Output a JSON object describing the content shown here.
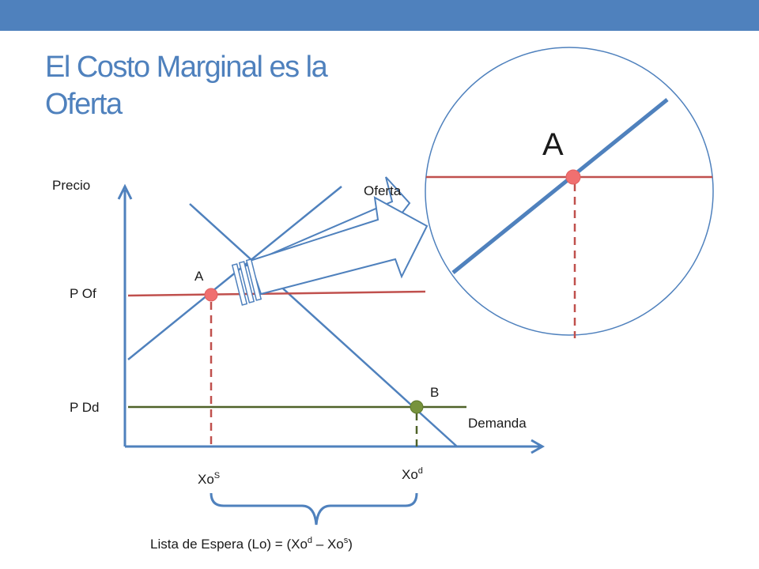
{
  "slide": {
    "title_line1": "El Costo Marginal es la",
    "title_line2": "Oferta"
  },
  "diagram": {
    "y_axis_label": "Precio",
    "supply_label": "Oferta",
    "demand_label": "Demanda",
    "price_supply_label": "P Of",
    "price_demand_label": "P Dd",
    "point_a_label": "A",
    "point_b_label": "B",
    "zoom_point_label": "A",
    "xos_base": "Xo",
    "xos_sup": "S",
    "xod_base": "Xo",
    "xod_sup": "d",
    "waiting_list": {
      "prefix": "Lista de Espera (Lo) = (Xo",
      "sup1": "d",
      "middle": " – Xo",
      "sup2": "s",
      "suffix": ")"
    }
  },
  "colors": {
    "accent_blue": "#4f81bd",
    "red_line": "#c0504d",
    "green_line": "#4f6228",
    "point_pink": "#f07070",
    "point_green": "#77933c"
  }
}
